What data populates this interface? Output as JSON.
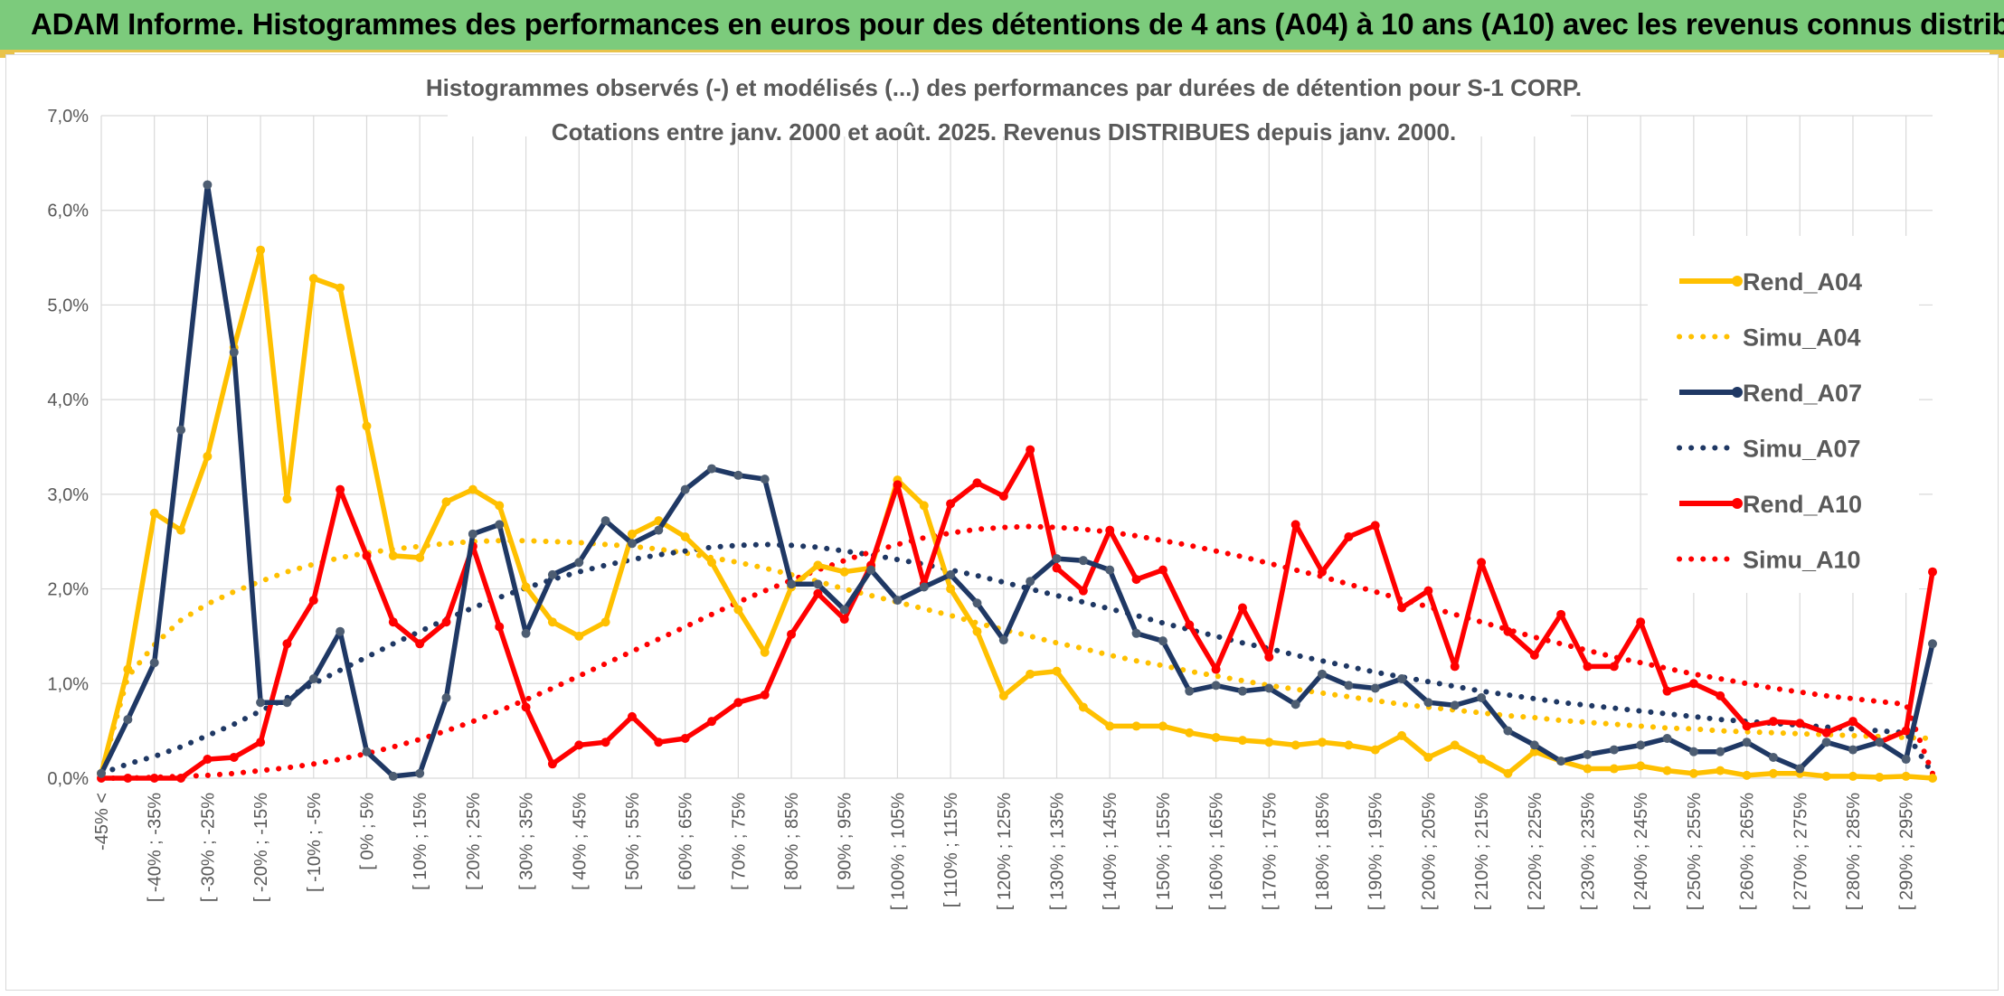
{
  "header": {
    "title": "ADAM Informe. Histogrammes des performances en euros pour des détentions de 4 ans (A04) à 10 ans (A10) avec les revenus connus distribués"
  },
  "colors": {
    "header_bg": "#7ccb7c",
    "accent": "#e9c34a",
    "A04": "#ffc000",
    "A07": "#1f3864",
    "A10": "#ff0000",
    "grid": "#d9d9d9",
    "text": "#595959"
  },
  "chart_data": {
    "type": "line",
    "title_lines": [
      "Histogrammes observés (-) et modélisés (...) des performances par durées de détention pour S-1 CORP.",
      "Cotations entre janv. 2000 et août. 2025. Revenus DISTRIBUES depuis janv. 2000."
    ],
    "ylim": [
      0,
      7
    ],
    "y_ticks": [
      "0,0%",
      "1,0%",
      "2,0%",
      "3,0%",
      "4,0%",
      "5,0%",
      "6,0%",
      "7,0%"
    ],
    "grid": true,
    "legend_position": "right",
    "x_tick_labels": [
      "-45% <",
      "[ -40% ; -35%",
      "[ -30% ; -25%",
      "[ -20% ; -15%",
      "[ -10% ; -5%",
      "[ 0% ; 5%",
      "[ 10% ; 15%",
      "[ 20% ; 25%",
      "[ 30% ; 35%",
      "[ 40% ; 45%",
      "[ 50% ; 55%",
      "[ 60% ; 65%",
      "[ 70% ; 75%",
      "[ 80% ; 85%",
      "[ 90% ; 95%",
      "[ 100% ; 105%",
      "[ 110% ; 115%",
      "[ 120% ; 125%",
      "[ 130% ; 135%",
      "[ 140% ; 145%",
      "[ 150% ; 155%",
      "[ 160% ; 165%",
      "[ 170% ; 175%",
      "[ 180% ; 185%",
      "[ 190% ; 195%",
      "[ 200% ; 205%",
      "[ 210% ; 215%",
      "[ 220% ; 225%",
      "[ 230% ; 235%",
      "[ 240% ; 245%",
      "[ 250% ; 255%",
      "[ 260% ; 265%",
      "[ 270% ; 275%",
      "[ 280% ; 285%",
      "[ 290% ; 295%"
    ],
    "n_categories": 70,
    "series": [
      {
        "name": "Rend_A04",
        "style": "solid",
        "color": "#ffc000",
        "values": [
          0.05,
          1.15,
          2.8,
          2.62,
          3.4,
          4.55,
          5.58,
          2.95,
          5.28,
          5.18,
          3.72,
          2.35,
          2.33,
          2.92,
          3.05,
          2.88,
          2.02,
          1.65,
          1.5,
          1.65,
          2.58,
          2.72,
          2.55,
          2.28,
          1.78,
          1.33,
          2.02,
          2.25,
          2.18,
          2.22,
          3.15,
          2.88,
          2.0,
          1.55,
          0.87,
          1.1,
          1.13,
          0.75,
          0.55,
          0.55,
          0.55,
          0.48,
          0.43,
          0.4,
          0.38,
          0.35,
          0.38,
          0.35,
          0.3,
          0.45,
          0.22,
          0.35,
          0.2,
          0.05,
          0.28,
          0.18,
          0.1,
          0.1,
          0.13,
          0.08,
          0.05,
          0.08,
          0.03,
          0.05,
          0.05,
          0.02,
          0.02,
          0.01,
          0.02,
          0.0
        ]
      },
      {
        "name": "Simu_A04",
        "style": "dotted",
        "color": "#ffc000",
        "values": [
          0.05,
          1.07,
          1.41,
          1.67,
          1.84,
          1.97,
          2.08,
          2.18,
          2.26,
          2.33,
          2.38,
          2.42,
          2.45,
          2.48,
          2.5,
          2.51,
          2.51,
          2.5,
          2.49,
          2.47,
          2.45,
          2.42,
          2.38,
          2.33,
          2.28,
          2.22,
          2.15,
          2.08,
          2.0,
          1.93,
          1.86,
          1.79,
          1.72,
          1.64,
          1.57,
          1.5,
          1.43,
          1.37,
          1.3,
          1.24,
          1.19,
          1.13,
          1.08,
          1.03,
          0.98,
          0.94,
          0.9,
          0.86,
          0.82,
          0.78,
          0.75,
          0.72,
          0.69,
          0.66,
          0.64,
          0.61,
          0.59,
          0.57,
          0.55,
          0.53,
          0.52,
          0.5,
          0.49,
          0.48,
          0.47,
          0.46,
          0.45,
          0.44,
          0.43,
          0.42
        ]
      },
      {
        "name": "Rend_A07",
        "style": "solid",
        "color": "#1f3864",
        "values": [
          0.05,
          0.62,
          1.22,
          3.68,
          6.27,
          4.5,
          0.8,
          0.8,
          1.05,
          1.55,
          0.28,
          0.02,
          0.05,
          0.85,
          2.58,
          2.68,
          1.53,
          2.15,
          2.28,
          2.72,
          2.48,
          2.62,
          3.05,
          3.27,
          3.2,
          3.16,
          2.05,
          2.05,
          1.78,
          2.2,
          1.88,
          2.02,
          2.15,
          1.85,
          1.46,
          2.08,
          2.32,
          2.3,
          2.2,
          1.53,
          1.45,
          0.92,
          0.98,
          0.92,
          0.95,
          0.78,
          1.1,
          0.98,
          0.95,
          1.05,
          0.8,
          0.77,
          0.85,
          0.5,
          0.35,
          0.18,
          0.25,
          0.3,
          0.35,
          0.42,
          0.28,
          0.28,
          0.38,
          0.22,
          0.1,
          0.38,
          0.3,
          0.38,
          0.2,
          1.42
        ]
      },
      {
        "name": "Simu_A07",
        "style": "dotted",
        "color": "#1f3864",
        "values": [
          0.05,
          0.15,
          0.23,
          0.33,
          0.45,
          0.57,
          0.71,
          0.85,
          1.0,
          1.14,
          1.28,
          1.42,
          1.55,
          1.68,
          1.8,
          1.91,
          2.01,
          2.1,
          2.18,
          2.25,
          2.31,
          2.36,
          2.4,
          2.44,
          2.46,
          2.47,
          2.46,
          2.44,
          2.4,
          2.36,
          2.31,
          2.26,
          2.2,
          2.14,
          2.07,
          2.0,
          1.93,
          1.86,
          1.79,
          1.72,
          1.64,
          1.57,
          1.5,
          1.43,
          1.37,
          1.3,
          1.24,
          1.18,
          1.12,
          1.07,
          1.02,
          0.97,
          0.92,
          0.88,
          0.84,
          0.8,
          0.77,
          0.74,
          0.71,
          0.68,
          0.65,
          0.62,
          0.6,
          0.58,
          0.56,
          0.54,
          0.52,
          0.5,
          0.48,
          0.05
        ]
      },
      {
        "name": "Rend_A10",
        "style": "solid",
        "color": "#ff0000",
        "values": [
          0.0,
          0.0,
          0.0,
          0.0,
          0.2,
          0.22,
          0.38,
          1.42,
          1.88,
          3.05,
          2.35,
          1.65,
          1.42,
          1.65,
          2.45,
          1.6,
          0.75,
          0.15,
          0.35,
          0.38,
          0.65,
          0.38,
          0.42,
          0.6,
          0.8,
          0.88,
          1.52,
          1.95,
          1.68,
          2.25,
          3.1,
          2.05,
          2.9,
          3.12,
          2.98,
          3.47,
          2.22,
          1.98,
          2.62,
          2.1,
          2.2,
          1.62,
          1.15,
          1.8,
          1.28,
          2.68,
          2.18,
          2.55,
          2.67,
          1.8,
          1.98,
          1.18,
          2.28,
          1.55,
          1.3,
          1.73,
          1.18,
          1.18,
          1.65,
          0.92,
          1.0,
          0.87,
          0.55,
          0.6,
          0.58,
          0.48,
          0.6,
          0.38,
          0.5,
          2.18
        ]
      },
      {
        "name": "Simu_A10",
        "style": "dotted",
        "color": "#ff0000",
        "values": [
          0.0,
          0.0,
          0.01,
          0.02,
          0.03,
          0.05,
          0.08,
          0.11,
          0.15,
          0.2,
          0.26,
          0.33,
          0.41,
          0.5,
          0.6,
          0.71,
          0.83,
          0.95,
          1.08,
          1.21,
          1.34,
          1.47,
          1.6,
          1.73,
          1.86,
          1.98,
          2.09,
          2.2,
          2.3,
          2.39,
          2.47,
          2.54,
          2.59,
          2.63,
          2.65,
          2.66,
          2.65,
          2.63,
          2.6,
          2.56,
          2.51,
          2.46,
          2.4,
          2.34,
          2.27,
          2.2,
          2.13,
          2.05,
          1.97,
          1.89,
          1.81,
          1.73,
          1.65,
          1.57,
          1.49,
          1.42,
          1.35,
          1.28,
          1.22,
          1.16,
          1.1,
          1.05,
          1.0,
          0.95,
          0.91,
          0.87,
          0.84,
          0.81,
          0.78,
          0.05
        ]
      }
    ]
  }
}
